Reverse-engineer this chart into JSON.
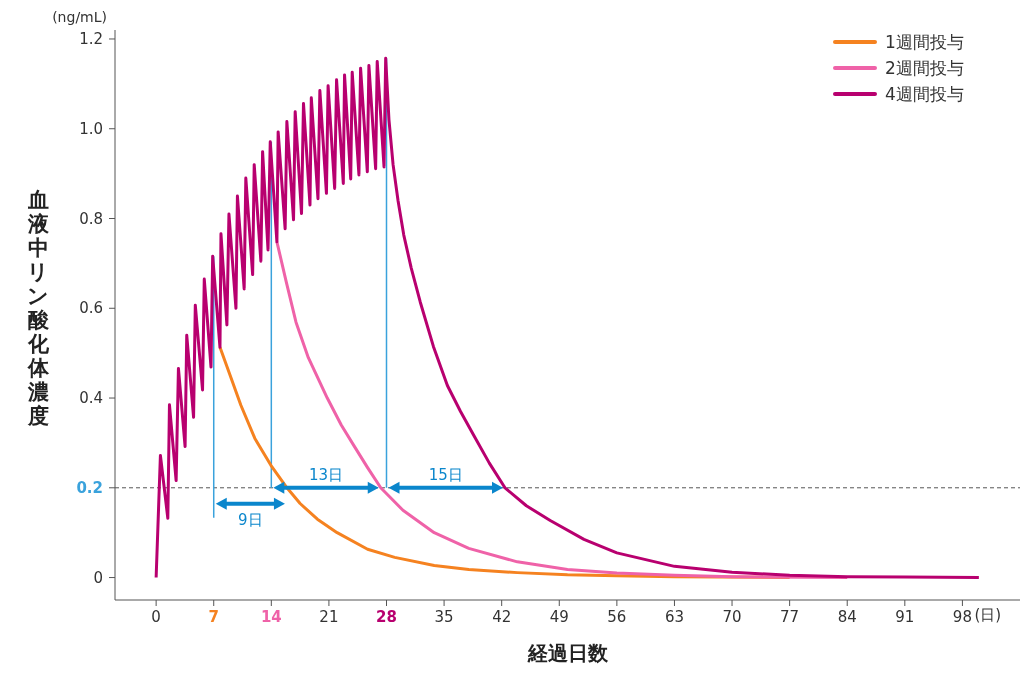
{
  "chart_data": {
    "type": "line",
    "xlabel": "経過日数",
    "ylabel": "血液中リン酸化体濃度",
    "xlim": [
      -5,
      105
    ],
    "ylim": [
      -0.05,
      1.22
    ],
    "xticks": [
      0,
      7,
      14,
      21,
      28,
      35,
      42,
      49,
      56,
      63,
      70,
      77,
      84,
      91,
      98
    ],
    "yticks": [
      0,
      0.2,
      0.4,
      0.6,
      0.8,
      {
        "value": 1,
        "label": "1.0"
      },
      1.2
    ],
    "legend": "top right",
    "marker": "none",
    "line_style": "solid",
    "series": [
      {
        "name": "1週間投与",
        "color": "#f58220",
        "x": [
          7.76,
          9,
          10.3,
          12,
          13.95,
          15.9,
          17.5,
          19.6,
          22,
          25.7,
          29,
          33.8,
          38,
          43.9,
          50,
          56,
          63,
          77
        ],
        "values": [
          0.513,
          0.45,
          0.384,
          0.31,
          0.25,
          0.2,
          0.165,
          0.13,
          0.1,
          0.063,
          0.045,
          0.027,
          0.018,
          0.011,
          0.006,
          0.004,
          0.002,
          0
        ]
      },
      {
        "name": "2週間投与",
        "color": "#ef62a8",
        "x": [
          14.68,
          15.8,
          17,
          18.5,
          20.8,
          22.5,
          24,
          25.7,
          27.3,
          30,
          33.8,
          38,
          43.9,
          50,
          56,
          63,
          70,
          84
        ],
        "values": [
          0.748,
          0.66,
          0.569,
          0.49,
          0.4,
          0.34,
          0.295,
          0.245,
          0.2,
          0.15,
          0.1,
          0.065,
          0.035,
          0.018,
          0.01,
          0.005,
          0.002,
          0
        ]
      },
      {
        "name": "4週間投与",
        "color": "#b8006f",
        "x": [
          0,
          0.52,
          1.42,
          1.62,
          2.43,
          2.71,
          3.52,
          3.72,
          4.55,
          4.76,
          5.64,
          5.85,
          6.67,
          6.87,
          7.76,
          7.88,
          8.6,
          8.85,
          9.7,
          9.88,
          10.7,
          10.9,
          11.73,
          11.92,
          12.73,
          12.94,
          13.6,
          13.87,
          14.68,
          14.83,
          15.68,
          15.89,
          16.7,
          16.9,
          17.67,
          17.91,
          18.7,
          18.86,
          19.67,
          19.9,
          20.7,
          20.9,
          21.7,
          21.93,
          22.75,
          22.9,
          23.65,
          23.83,
          24.65,
          24.85,
          25.67,
          25.86,
          26.68,
          26.87,
          27.7,
          27.9,
          28.3,
          28.8,
          29.4,
          30.1,
          31,
          32.1,
          33.7,
          35.4,
          37,
          38.6,
          40.5,
          42.4,
          45,
          47.9,
          52,
          56,
          63,
          70,
          77,
          84,
          91,
          100
        ],
        "values": [
          0,
          0.272,
          0.132,
          0.385,
          0.216,
          0.466,
          0.292,
          0.54,
          0.357,
          0.607,
          0.418,
          0.665,
          0.469,
          0.716,
          0.513,
          0.766,
          0.563,
          0.81,
          0.6,
          0.85,
          0.643,
          0.89,
          0.675,
          0.92,
          0.705,
          0.949,
          0.73,
          0.971,
          0.748,
          0.993,
          0.777,
          1.016,
          0.797,
          1.038,
          0.811,
          1.056,
          0.83,
          1.069,
          0.844,
          1.085,
          0.856,
          1.096,
          0.867,
          1.109,
          0.878,
          1.12,
          0.888,
          1.126,
          0.897,
          1.135,
          0.904,
          1.141,
          0.911,
          1.15,
          0.915,
          1.157,
          1.02,
          0.92,
          0.84,
          0.763,
          0.69,
          0.614,
          0.515,
          0.428,
          0.37,
          0.317,
          0.255,
          0.2,
          0.16,
          0.127,
          0.085,
          0.055,
          0.025,
          0.012,
          0.005,
          0.002,
          0.001,
          0
        ]
      }
    ],
    "ref_lines": [
      {
        "axis": "x",
        "value": 7,
        "color": "#3aa2dc"
      },
      {
        "axis": "x",
        "value": 14,
        "color": "#3aa2dc"
      },
      {
        "axis": "x",
        "value": 28,
        "color": "#3aa2dc"
      },
      {
        "axis": "y",
        "value": 0.2,
        "color": "#555555",
        "line_style": "dashed"
      }
    ],
    "annotations": [
      "(ng/mL)",
      "(日)",
      "9日",
      "13日",
      "15日"
    ]
  }
}
